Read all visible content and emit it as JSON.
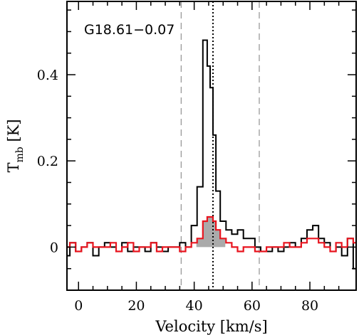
{
  "chart_data": {
    "type": "line",
    "step": true,
    "title": "G18.61−0.07",
    "xlabel": "Velocity [km/s]",
    "ylabel": "T_mb [K]",
    "ylabel_main": "T",
    "ylabel_sub": "mb",
    "ylabel_unit": " [K]",
    "xlim": [
      -4,
      96
    ],
    "ylim": [
      -0.1,
      0.57
    ],
    "xticks": [
      0,
      20,
      40,
      60,
      80
    ],
    "yticks": [
      0,
      0.2,
      0.4
    ],
    "ytick_labels": [
      "0",
      "0.2",
      "0.4"
    ],
    "grid": false,
    "series": [
      {
        "color": "#000000",
        "x": [
          -4,
          -2,
          0,
          2,
          4,
          6,
          8,
          10,
          12,
          14,
          16,
          18,
          20,
          22,
          24,
          26,
          28,
          30,
          32,
          34,
          36,
          38,
          40,
          42,
          44,
          45,
          46,
          47,
          48,
          50,
          52,
          54,
          56,
          58,
          60,
          62,
          64,
          66,
          68,
          70,
          72,
          74,
          76,
          78,
          80,
          82,
          84,
          86,
          88,
          90,
          92,
          94,
          96
        ],
        "values": [
          -0.02,
          0.01,
          -0.01,
          0.0,
          0.01,
          -0.02,
          0.0,
          0.01,
          0.0,
          -0.01,
          0.01,
          -0.01,
          0.0,
          0.0,
          -0.01,
          0.01,
          0.0,
          -0.01,
          0.0,
          0.0,
          0.01,
          0.0,
          0.05,
          0.14,
          0.48,
          0.42,
          0.37,
          0.26,
          0.13,
          0.06,
          0.04,
          0.03,
          0.04,
          0.02,
          0.02,
          0.0,
          -0.01,
          -0.01,
          0.0,
          -0.01,
          0.0,
          0.01,
          0.0,
          0.02,
          0.04,
          0.05,
          0.02,
          0.01,
          -0.01,
          0.0,
          -0.02,
          0.02,
          -0.05
        ]
      },
      {
        "color": "#e8141e",
        "x": [
          -4,
          -2,
          0,
          2,
          4,
          6,
          8,
          10,
          12,
          14,
          16,
          18,
          20,
          22,
          24,
          26,
          28,
          30,
          32,
          34,
          36,
          38,
          40,
          42,
          44,
          45,
          46,
          47,
          48,
          50,
          52,
          54,
          56,
          58,
          60,
          62,
          64,
          66,
          68,
          70,
          72,
          74,
          76,
          78,
          80,
          82,
          84,
          86,
          88,
          90,
          92,
          94,
          96
        ],
        "values": [
          0.0,
          0.01,
          -0.01,
          0.0,
          0.01,
          0.0,
          0.0,
          0.0,
          0.01,
          -0.01,
          0.0,
          0.01,
          -0.01,
          0.0,
          0.0,
          0.01,
          -0.01,
          0.0,
          0.0,
          0.0,
          -0.01,
          0.0,
          0.01,
          0.02,
          0.06,
          0.07,
          0.07,
          0.06,
          0.04,
          0.02,
          0.01,
          0.0,
          -0.01,
          0.0,
          0.0,
          -0.01,
          -0.01,
          0.0,
          0.0,
          0.0,
          0.01,
          0.0,
          0.0,
          0.01,
          0.02,
          0.02,
          0.01,
          0.0,
          -0.01,
          0.01,
          0.0,
          0.02,
          0.01
        ]
      }
    ],
    "shaded_region": {
      "color": "#aaaaaa",
      "x": [
        39.5,
        42,
        44,
        45,
        46,
        47,
        48,
        50,
        51.5
      ],
      "values": [
        0.0,
        0.02,
        0.06,
        0.07,
        0.07,
        0.06,
        0.04,
        0.02,
        0.0
      ]
    },
    "vlines": [
      {
        "x": 35.5,
        "style": "dashed",
        "color": "#999999"
      },
      {
        "x": 62.5,
        "style": "dashed",
        "color": "#999999"
      },
      {
        "x": 46.5,
        "style": "dotted",
        "color": "#000000"
      }
    ]
  }
}
